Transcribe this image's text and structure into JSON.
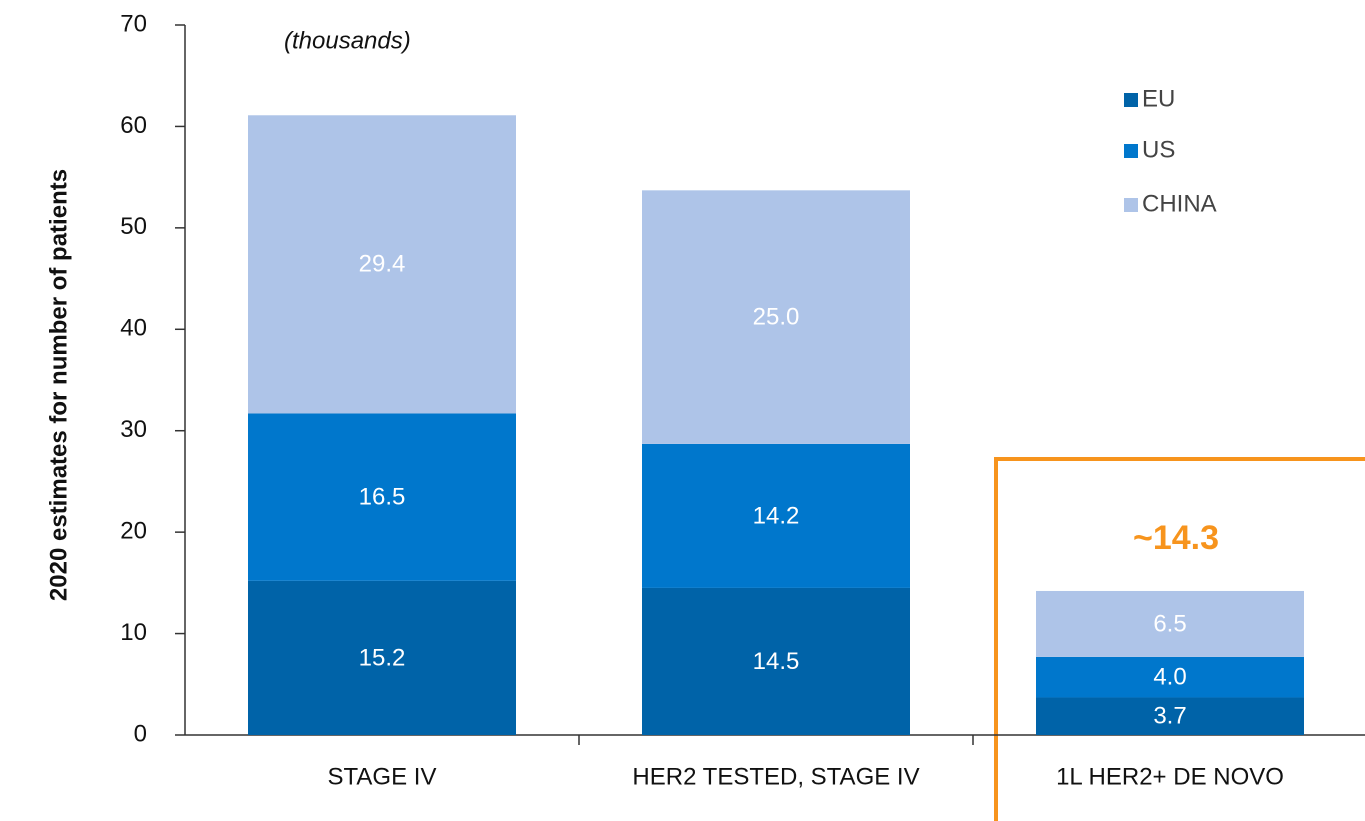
{
  "chart_data": {
    "type": "stacked_bar",
    "y_label": "2020 estimates for number of patients",
    "annotations": [
      "(thousands)",
      "~14.3"
    ],
    "categories": [
      "STAGE  IV",
      "HER2 TESTED, STAGE IV",
      "1L HER2+ DE NOVO"
    ],
    "series": [
      {
        "name": "EU",
        "color": "#0063a8",
        "values": [
          15.2,
          14.5,
          3.7
        ],
        "value_labels": [
          "15.2",
          "14.5",
          "3.7"
        ]
      },
      {
        "name": "US",
        "color": "#0077cc",
        "values": [
          16.5,
          14.2,
          4.0
        ],
        "value_labels": [
          "16.5",
          "14.2",
          "4.0"
        ]
      },
      {
        "name": "CHINA",
        "color": "#aec4e8",
        "values": [
          29.4,
          25.0,
          6.5
        ],
        "value_labels": [
          "29.4",
          "25.0",
          "6.5"
        ]
      }
    ],
    "ylim": [
      0,
      70
    ],
    "yticks": [
      0,
      10,
      20,
      30,
      40,
      50,
      60,
      70
    ],
    "grid": false,
    "legend": "upper right"
  }
}
